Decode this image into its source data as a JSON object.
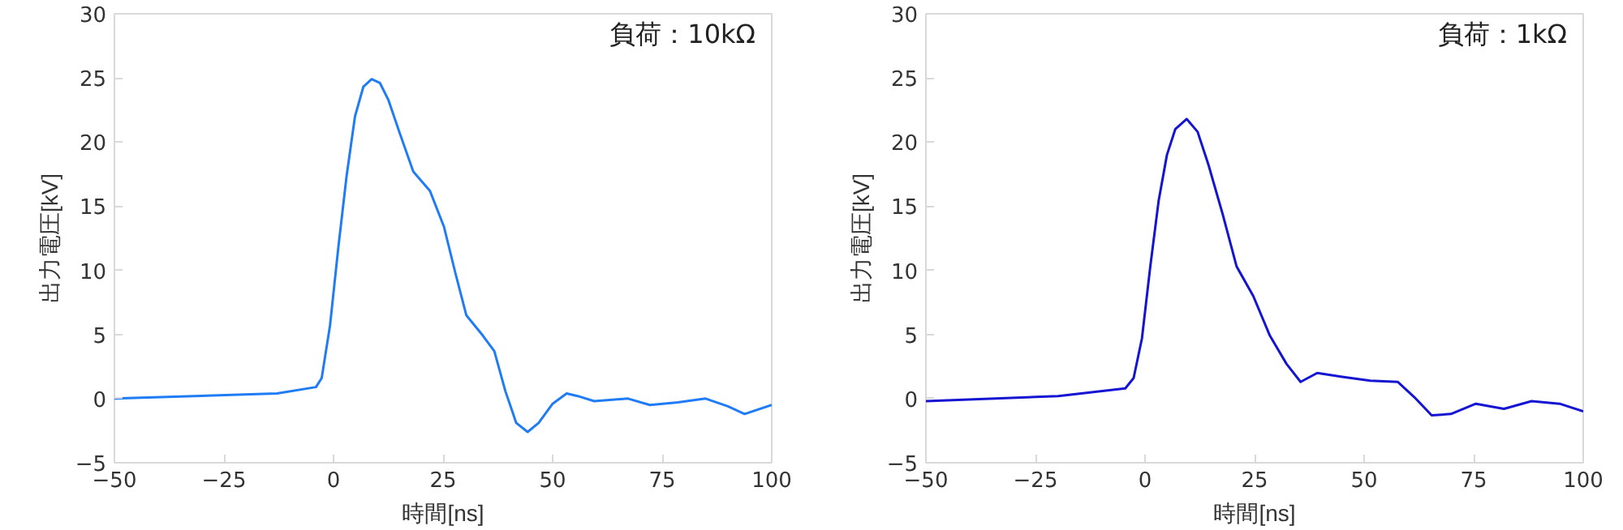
{
  "chart_data": [
    {
      "type": "line",
      "xlabel": "時間[ns]",
      "ylabel": "出力電圧[kV]",
      "annotations": [
        "負荷：10kΩ"
      ],
      "xlim": [
        -50,
        100
      ],
      "xticks": [
        -50,
        -25,
        0,
        25,
        50,
        75,
        100
      ],
      "ylim": [
        -5,
        30
      ],
      "yticks": [
        -5,
        0,
        5,
        10,
        15,
        20,
        25,
        30
      ],
      "marker": "none",
      "line_style": "solid",
      "series": [
        {
          "color": "#1f7cf5",
          "x": [
            -50,
            -12.9,
            -4,
            -2.7,
            -0.8,
            1.1,
            3,
            4.9,
            6.8,
            8.7,
            10.6,
            12.5,
            15,
            18.2,
            22,
            25.2,
            27.8,
            30.3,
            34.1,
            36.7,
            39.2,
            41.7,
            44.3,
            46.8,
            50,
            53.2,
            55.7,
            59.5,
            67.2,
            72.2,
            78.6,
            84.9,
            90,
            93.8,
            100
          ],
          "values": [
            0,
            0.4,
            0.9,
            1.6,
            5.7,
            11.8,
            17.4,
            22,
            24.3,
            24.9,
            24.6,
            23.3,
            20.8,
            17.7,
            16.2,
            13.4,
            9.8,
            6.5,
            4.9,
            3.7,
            0.6,
            -1.9,
            -2.6,
            -1.9,
            -0.4,
            0.4,
            0.2,
            -0.2,
            0,
            -0.5,
            -0.3,
            0,
            -0.6,
            -1.2,
            -0.5
          ]
        }
      ]
    },
    {
      "type": "line",
      "xlabel": "時間[ns]",
      "ylabel": "出力電圧[kV]",
      "annotations": [
        "負荷：1kΩ"
      ],
      "xlim": [
        -50,
        100
      ],
      "xticks": [
        -50,
        -25,
        0,
        25,
        50,
        75,
        100
      ],
      "ylim": [
        -5,
        30
      ],
      "yticks": [
        -5,
        0,
        5,
        10,
        15,
        20,
        25,
        30
      ],
      "marker": "none",
      "line_style": "solid",
      "series": [
        {
          "color": "#1414d2",
          "x": [
            -50,
            -19.8,
            -4.5,
            -2.6,
            -0.7,
            1.2,
            3.1,
            5,
            6.9,
            9.5,
            12,
            14.5,
            17.7,
            20.9,
            24.7,
            28.5,
            32.3,
            35.5,
            39.3,
            45,
            51.4,
            57.7,
            61.5,
            65.4,
            69.8,
            75.5,
            81.9,
            88.2,
            94.6,
            100
          ],
          "values": [
            -0.2,
            0.2,
            0.8,
            1.6,
            4.7,
            10.3,
            15.4,
            19,
            21,
            21.8,
            20.8,
            18.2,
            14.4,
            10.3,
            8,
            4.9,
            2.7,
            1.3,
            2,
            1.7,
            1.4,
            1.3,
            0.1,
            -1.3,
            -1.2,
            -0.4,
            -0.8,
            -0.2,
            -0.4,
            -1
          ]
        }
      ]
    }
  ]
}
